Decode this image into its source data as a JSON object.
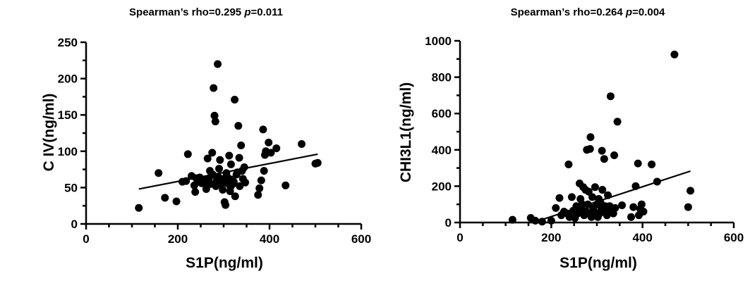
{
  "chart_data": [
    {
      "type": "scatter",
      "title": "Spearman’s rho=0.295 ",
      "title_p_label": "p",
      "title_p_value": "=0.011",
      "xlabel": "S1P(ng/ml)",
      "ylabel": "C IV(ng/ml)",
      "xlim": [
        0,
        600
      ],
      "ylim": [
        0,
        250
      ],
      "xticks": [
        "0",
        "200",
        "400",
        "600"
      ],
      "yticks": [
        "0",
        "50",
        "100",
        "150",
        "200",
        "250"
      ],
      "regression_line": [
        [
          115,
          48
        ],
        [
          505,
          96
        ]
      ],
      "points": [
        [
          115,
          22
        ],
        [
          158,
          70
        ],
        [
          172,
          36
        ],
        [
          197,
          31
        ],
        [
          210,
          58
        ],
        [
          218,
          59
        ],
        [
          222,
          96
        ],
        [
          230,
          66
        ],
        [
          236,
          53
        ],
        [
          238,
          44
        ],
        [
          240,
          63
        ],
        [
          245,
          59
        ],
        [
          248,
          64
        ],
        [
          252,
          56
        ],
        [
          255,
          61
        ],
        [
          258,
          57
        ],
        [
          262,
          48
        ],
        [
          265,
          90
        ],
        [
          268,
          63
        ],
        [
          270,
          73
        ],
        [
          272,
          55
        ],
        [
          275,
          98
        ],
        [
          276,
          68
        ],
        [
          278,
          187
        ],
        [
          280,
          149
        ],
        [
          282,
          141
        ],
        [
          283,
          52
        ],
        [
          285,
          60
        ],
        [
          287,
          220
        ],
        [
          288,
          65
        ],
        [
          290,
          76
        ],
        [
          292,
          88
        ],
        [
          295,
          55
        ],
        [
          297,
          57
        ],
        [
          298,
          47
        ],
        [
          300,
          62
        ],
        [
          302,
          30
        ],
        [
          304,
          26
        ],
        [
          306,
          70
        ],
        [
          308,
          56
        ],
        [
          310,
          63
        ],
        [
          312,
          94
        ],
        [
          314,
          45
        ],
        [
          315,
          51
        ],
        [
          316,
          82
        ],
        [
          318,
          61
        ],
        [
          320,
          55
        ],
        [
          322,
          58
        ],
        [
          324,
          171
        ],
        [
          325,
          38
        ],
        [
          328,
          68
        ],
        [
          330,
          71
        ],
        [
          332,
          135
        ],
        [
          334,
          91
        ],
        [
          335,
          52
        ],
        [
          338,
          108
        ],
        [
          340,
          73
        ],
        [
          342,
          62
        ],
        [
          345,
          78
        ],
        [
          347,
          57
        ],
        [
          375,
          40
        ],
        [
          378,
          49
        ],
        [
          382,
          60
        ],
        [
          386,
          130
        ],
        [
          388,
          73
        ],
        [
          390,
          95
        ],
        [
          392,
          100
        ],
        [
          398,
          112
        ],
        [
          403,
          98
        ],
        [
          415,
          104
        ],
        [
          435,
          53
        ],
        [
          470,
          110
        ],
        [
          500,
          83
        ],
        [
          505,
          84
        ]
      ]
    },
    {
      "type": "scatter",
      "title": "Spearman’s rho=0.264 ",
      "title_p_label": "p",
      "title_p_value": "=0.004",
      "xlabel": "S1P(ng/ml)",
      "ylabel": "CHI3L1(ng/ml)",
      "xlim": [
        0,
        600
      ],
      "ylim": [
        0,
        1000
      ],
      "xticks": [
        "0",
        "200",
        "400",
        "600"
      ],
      "yticks": [
        "0",
        "200",
        "400",
        "600",
        "800",
        "1000"
      ],
      "regression_line": [
        [
          160,
          0
        ],
        [
          505,
          283
        ]
      ],
      "points": [
        [
          115,
          15
        ],
        [
          155,
          25
        ],
        [
          165,
          10
        ],
        [
          180,
          5
        ],
        [
          200,
          10
        ],
        [
          210,
          80
        ],
        [
          218,
          135
        ],
        [
          222,
          40
        ],
        [
          228,
          60
        ],
        [
          235,
          50
        ],
        [
          238,
          320
        ],
        [
          240,
          30
        ],
        [
          245,
          140
        ],
        [
          248,
          65
        ],
        [
          252,
          25
        ],
        [
          255,
          90
        ],
        [
          258,
          50
        ],
        [
          262,
          215
        ],
        [
          264,
          130
        ],
        [
          266,
          75
        ],
        [
          268,
          100
        ],
        [
          270,
          195
        ],
        [
          272,
          40
        ],
        [
          275,
          180
        ],
        [
          277,
          60
        ],
        [
          278,
          400
        ],
        [
          280,
          100
        ],
        [
          282,
          170
        ],
        [
          284,
          50
        ],
        [
          285,
          405
        ],
        [
          286,
          470
        ],
        [
          288,
          30
        ],
        [
          290,
          140
        ],
        [
          292,
          80
        ],
        [
          294,
          60
        ],
        [
          296,
          195
        ],
        [
          298,
          50
        ],
        [
          300,
          100
        ],
        [
          302,
          30
        ],
        [
          304,
          130
        ],
        [
          306,
          50
        ],
        [
          308,
          110
        ],
        [
          310,
          70
        ],
        [
          311,
          395
        ],
        [
          312,
          180
        ],
        [
          314,
          60
        ],
        [
          316,
          350
        ],
        [
          318,
          90
        ],
        [
          320,
          65
        ],
        [
          322,
          40
        ],
        [
          324,
          150
        ],
        [
          326,
          60
        ],
        [
          328,
          90
        ],
        [
          330,
          695
        ],
        [
          332,
          70
        ],
        [
          334,
          60
        ],
        [
          336,
          50
        ],
        [
          338,
          370
        ],
        [
          340,
          80
        ],
        [
          345,
          555
        ],
        [
          355,
          95
        ],
        [
          375,
          30
        ],
        [
          380,
          85
        ],
        [
          385,
          200
        ],
        [
          390,
          325
        ],
        [
          392,
          40
        ],
        [
          395,
          75
        ],
        [
          398,
          100
        ],
        [
          402,
          60
        ],
        [
          420,
          320
        ],
        [
          432,
          225
        ],
        [
          470,
          925
        ],
        [
          500,
          85
        ],
        [
          505,
          175
        ]
      ]
    }
  ]
}
